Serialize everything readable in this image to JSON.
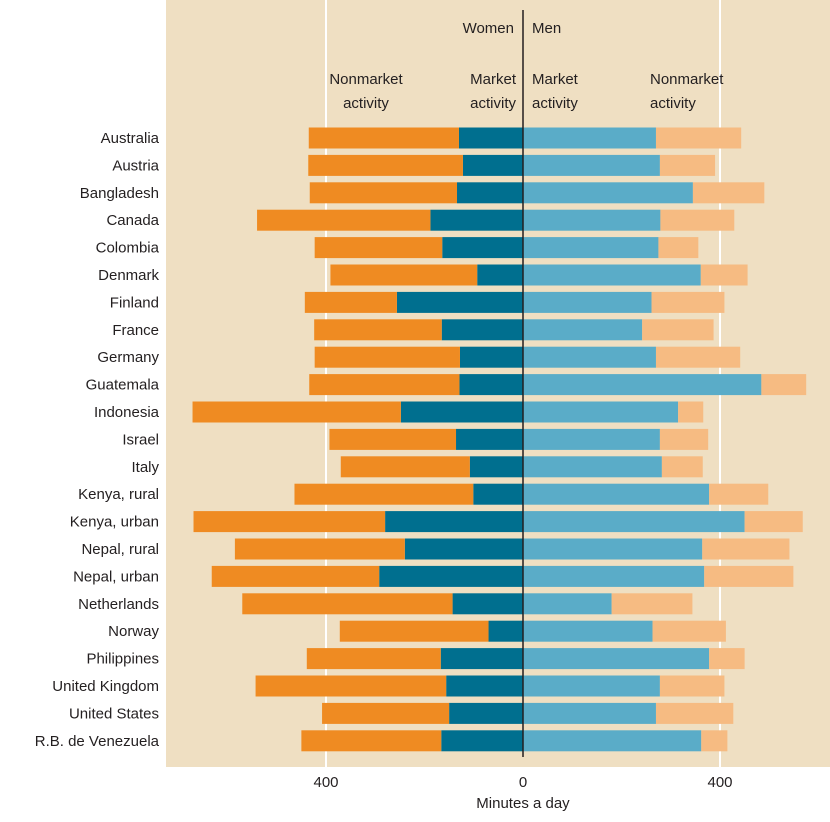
{
  "chart_data": {
    "type": "bar",
    "orientation": "horizontal-diverging",
    "title": "",
    "xlabel": "Minutes a day",
    "x_ticks": [
      400,
      0,
      400
    ],
    "x_tick_values": [
      -400,
      0,
      400
    ],
    "xlim": [
      -670,
      620
    ],
    "grid": true,
    "top_labels": {
      "women": "Women",
      "men": "Men",
      "women_nonmarket_line1": "Nonmarket",
      "women_nonmarket_line2": "activity",
      "women_market_line1": "Market",
      "women_market_line2": "activity",
      "men_market_line1": "Market",
      "men_market_line2": "activity",
      "men_nonmarket_line1": "Nonmarket",
      "men_nonmarket_line2": "activity"
    },
    "categories": [
      "Australia",
      "Austria",
      "Bangladesh",
      "Canada",
      "Colombia",
      "Denmark",
      "Finland",
      "France",
      "Germany",
      "Guatemala",
      "Indonesia",
      "Israel",
      "Italy",
      "Kenya, rural",
      "Kenya, urban",
      "Nepal, rural",
      "Nepal, urban",
      "Netherlands",
      "Norway",
      "Philippines",
      "United Kingdom",
      "United States",
      "R.B. de Venezuela"
    ],
    "series": [
      {
        "name": "Market activity",
        "group": "Women",
        "values": [
          130,
          122,
          134,
          188,
          164,
          93,
          256,
          165,
          128,
          129,
          248,
          136,
          108,
          101,
          280,
          240,
          292,
          143,
          70,
          167,
          156,
          150,
          166
        ]
      },
      {
        "name": "Nonmarket activity",
        "group": "Women",
        "values": [
          305,
          314,
          299,
          352,
          259,
          298,
          187,
          259,
          295,
          305,
          423,
          257,
          262,
          363,
          389,
          345,
          340,
          427,
          302,
          272,
          387,
          258,
          284
        ]
      },
      {
        "name": "Market activity",
        "group": "Men",
        "values": [
          270,
          278,
          345,
          279,
          275,
          361,
          261,
          242,
          270,
          484,
          315,
          278,
          282,
          378,
          450,
          364,
          368,
          180,
          263,
          378,
          278,
          270,
          362
        ]
      },
      {
        "name": "Nonmarket activity",
        "group": "Men",
        "values": [
          173,
          112,
          145,
          150,
          81,
          95,
          148,
          145,
          171,
          91,
          51,
          98,
          83,
          120,
          118,
          177,
          181,
          164,
          149,
          72,
          131,
          157,
          53
        ]
      }
    ],
    "colors": {
      "background": "#efdfc2",
      "women_nonmarket": "#ef8b22",
      "women_market": "#006f8f",
      "men_market": "#5aacc8",
      "men_nonmarket": "#f6bb82",
      "gridline": "#ffffff",
      "zero_line": "#231f20",
      "text": "#231f20"
    }
  }
}
